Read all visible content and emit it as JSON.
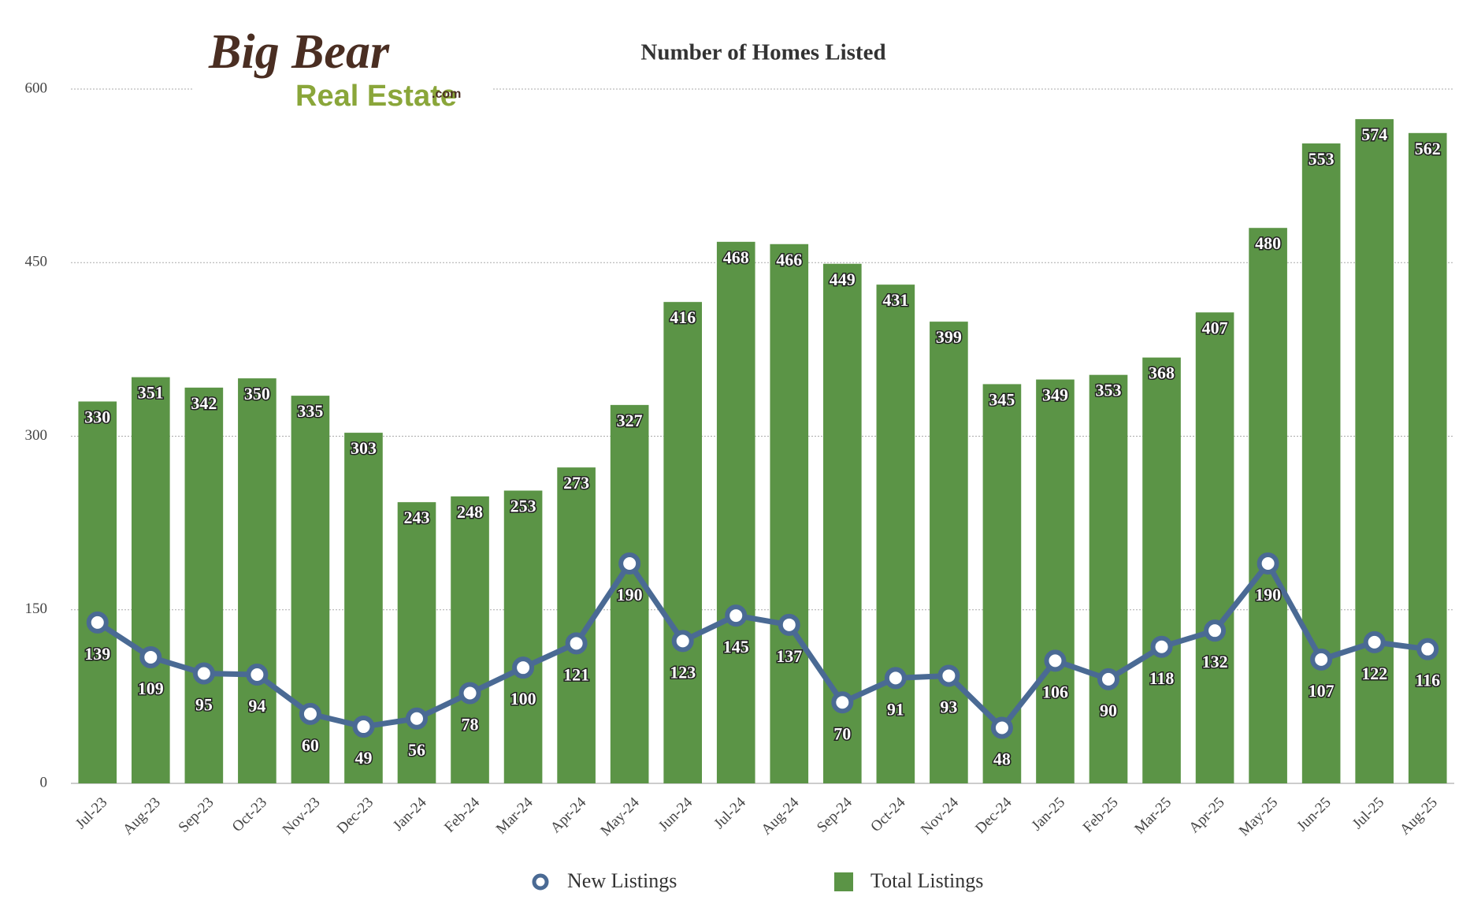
{
  "logo": {
    "line1": "Big Bear",
    "line2": "Real Estate",
    "suffix": ".com"
  },
  "chart_data": {
    "type": "bar",
    "title": "Number of Homes Listed",
    "categories": [
      "Jul-23",
      "Aug-23",
      "Sep-23",
      "Oct-23",
      "Nov-23",
      "Dec-23",
      "Jan-24",
      "Feb-24",
      "Mar-24",
      "Apr-24",
      "May-24",
      "Jun-24",
      "Jul-24",
      "Aug-24",
      "Sep-24",
      "Oct-24",
      "Nov-24",
      "Dec-24",
      "Jan-25",
      "Feb-25",
      "Mar-25",
      "Apr-25",
      "May-25",
      "Jun-25",
      "Jul-25",
      "Aug-25"
    ],
    "series": [
      {
        "name": "Total Listings",
        "type": "bar",
        "color": "#5b9446",
        "values": [
          330,
          351,
          342,
          350,
          335,
          303,
          243,
          248,
          253,
          273,
          327,
          416,
          468,
          466,
          449,
          431,
          399,
          345,
          349,
          353,
          368,
          407,
          480,
          553,
          574,
          562
        ]
      },
      {
        "name": "New Listings",
        "type": "line",
        "color": "#4a6a94",
        "values": [
          139,
          109,
          95,
          94,
          60,
          49,
          56,
          78,
          100,
          121,
          190,
          123,
          145,
          137,
          70,
          91,
          93,
          48,
          106,
          90,
          118,
          132,
          190,
          107,
          122,
          116
        ]
      }
    ],
    "ylim": [
      0,
      600
    ],
    "yticks": [
      0,
      150,
      300,
      450,
      600
    ],
    "grid": true
  }
}
